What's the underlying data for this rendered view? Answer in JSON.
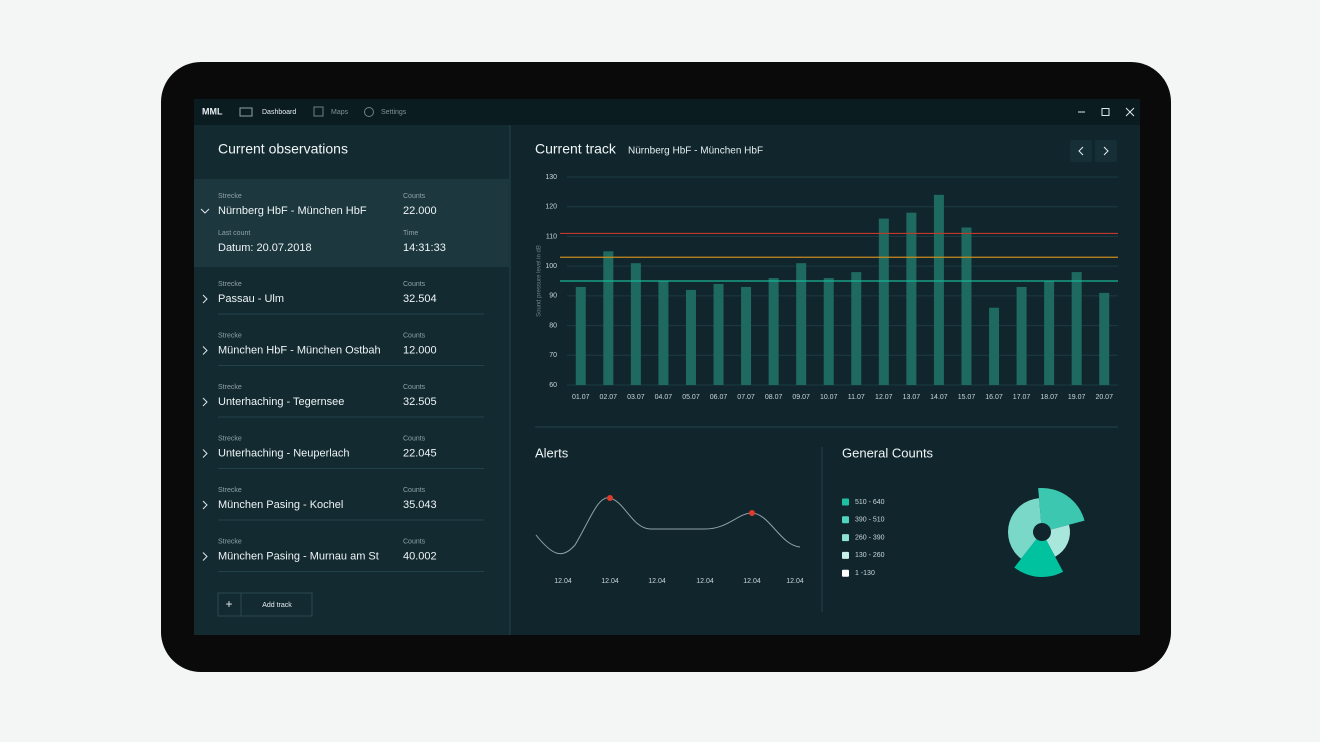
{
  "app": {
    "brand": "MML",
    "nav": [
      "Dashboard",
      "Maps",
      "Settings"
    ]
  },
  "observations": {
    "title": "Current observations",
    "labels": {
      "route": "Strecke",
      "counts": "Counts",
      "last_count": "Last count",
      "time": "Time"
    },
    "items": [
      {
        "route": "Nürnberg HbF - München  HbF",
        "counts": "22.000",
        "last_count": "Datum: 20.07.2018",
        "time": "14:31:33"
      },
      {
        "route": "Passau - Ulm",
        "counts": "32.504"
      },
      {
        "route": "München HbF - München Ostbah",
        "counts": "12.000"
      },
      {
        "route": "Unterhaching - Tegernsee",
        "counts": "32.505"
      },
      {
        "route": "Unterhaching - Neuperlach",
        "counts": "22.045"
      },
      {
        "route": "München Pasing - Kochel",
        "counts": "35.043"
      },
      {
        "route": "München Pasing - Murnau am St",
        "counts": "40.002"
      }
    ],
    "add_button": "Add track"
  },
  "chart_data": {
    "type": "bar",
    "title": "Current track",
    "subtitle": "Nürnberg HbF - München  HbF",
    "y_label": "Sound pressure level in dB",
    "categories": [
      "01.07",
      "02.07",
      "03.07",
      "04.07",
      "05.07",
      "06.07",
      "07.07",
      "08.07",
      "09.07",
      "10.07",
      "11.07",
      "12.07",
      "13.07",
      "14.07",
      "15.07",
      "16.07",
      "17.07",
      "18.07",
      "19.07",
      "20.07"
    ],
    "values": [
      93,
      105,
      101,
      95,
      92,
      94,
      93,
      96,
      101,
      96,
      98,
      116,
      118,
      124,
      113,
      86,
      93,
      95,
      98,
      91
    ],
    "color": "#1e6a60",
    "ylim": [
      60,
      130
    ],
    "yticks": [
      60,
      70,
      80,
      90,
      100,
      110,
      120,
      130
    ],
    "thresholds": [
      {
        "value": 111,
        "color": "#c0392b"
      },
      {
        "value": 103,
        "color": "#c98a1e"
      },
      {
        "value": 95,
        "color": "#19b596"
      }
    ]
  },
  "alerts": {
    "title": "Alerts",
    "labels": [
      "12.04",
      "12.04",
      "12.04",
      "12.04",
      "12.04",
      "12.04"
    ]
  },
  "general_counts": {
    "title": "General Counts",
    "legend": [
      "510 - 640",
      "390 - 510",
      "260 - 390",
      "130 - 260",
      "1 -130"
    ]
  }
}
